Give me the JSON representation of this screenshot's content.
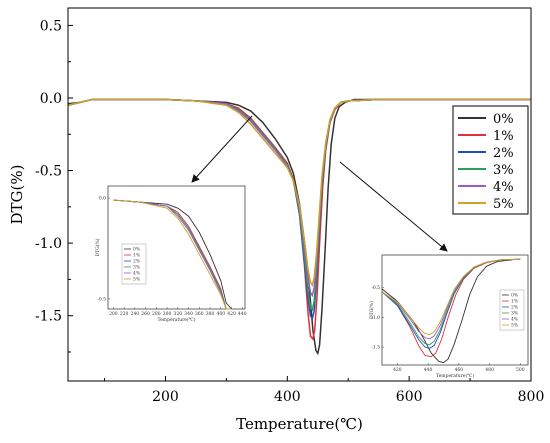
{
  "chart_data": {
    "type": "line",
    "xlabel": "Temperature(℃)",
    "ylabel": "DTG(%)",
    "xlim": [
      40,
      800
    ],
    "ylim": [
      -1.95,
      0.62
    ],
    "x_ticks": [
      "200",
      "400",
      "600",
      "800"
    ],
    "y_ticks": [
      "0.5",
      "0.0",
      "-0.5",
      "-1.0",
      "-1.5"
    ],
    "legend_position": "right",
    "series": [
      {
        "name": "0%",
        "color": "#333333",
        "x": [
          40,
          60,
          80,
          100,
          150,
          200,
          250,
          300,
          320,
          340,
          360,
          380,
          400,
          410,
          420,
          430,
          437,
          442,
          447,
          450,
          453,
          457,
          462,
          467,
          472,
          478,
          485,
          495,
          510,
          550,
          600,
          700,
          800
        ],
        "y": [
          -0.04,
          -0.03,
          -0.01,
          -0.01,
          -0.01,
          -0.01,
          -0.02,
          -0.03,
          -0.05,
          -0.09,
          -0.17,
          -0.28,
          -0.41,
          -0.52,
          -0.73,
          -1.05,
          -1.35,
          -1.6,
          -1.74,
          -1.76,
          -1.7,
          -1.45,
          -1.05,
          -0.62,
          -0.32,
          -0.14,
          -0.06,
          -0.03,
          -0.01,
          -0.01,
          -0.01,
          -0.01,
          -0.01
        ]
      },
      {
        "name": "1%",
        "color": "#e0303a",
        "x": [
          40,
          60,
          80,
          100,
          150,
          200,
          250,
          300,
          320,
          340,
          360,
          380,
          400,
          410,
          420,
          428,
          434,
          438,
          442,
          445,
          449,
          453,
          458,
          463,
          470,
          478,
          488,
          500,
          550,
          600,
          700,
          800
        ],
        "y": [
          -0.05,
          -0.03,
          -0.01,
          -0.01,
          -0.01,
          -0.01,
          -0.02,
          -0.04,
          -0.07,
          -0.14,
          -0.24,
          -0.34,
          -0.45,
          -0.56,
          -0.8,
          -1.15,
          -1.48,
          -1.64,
          -1.66,
          -1.6,
          -1.35,
          -1.0,
          -0.62,
          -0.36,
          -0.17,
          -0.08,
          -0.03,
          -0.02,
          -0.01,
          -0.01,
          -0.01,
          -0.01
        ]
      },
      {
        "name": "2%",
        "color": "#1f4fbf",
        "x": [
          40,
          60,
          80,
          100,
          150,
          200,
          250,
          300,
          320,
          340,
          360,
          380,
          400,
          410,
          420,
          428,
          434,
          438,
          441,
          444,
          448,
          452,
          457,
          463,
          470,
          478,
          488,
          500,
          550,
          600,
          700,
          800
        ],
        "y": [
          -0.05,
          -0.03,
          -0.01,
          -0.01,
          -0.01,
          -0.01,
          -0.02,
          -0.04,
          -0.08,
          -0.15,
          -0.25,
          -0.35,
          -0.46,
          -0.57,
          -0.8,
          -1.12,
          -1.38,
          -1.5,
          -1.52,
          -1.47,
          -1.25,
          -0.95,
          -0.6,
          -0.34,
          -0.16,
          -0.07,
          -0.03,
          -0.02,
          -0.01,
          -0.01,
          -0.01,
          -0.01
        ]
      },
      {
        "name": "3%",
        "color": "#2e9c5a",
        "x": [
          40,
          60,
          80,
          100,
          150,
          200,
          250,
          300,
          320,
          340,
          360,
          380,
          400,
          410,
          420,
          428,
          434,
          438,
          441,
          444,
          448,
          452,
          457,
          463,
          470,
          478,
          488,
          500,
          550,
          600,
          700,
          800
        ],
        "y": [
          -0.05,
          -0.03,
          -0.01,
          -0.01,
          -0.01,
          -0.01,
          -0.02,
          -0.04,
          -0.08,
          -0.15,
          -0.25,
          -0.35,
          -0.46,
          -0.57,
          -0.78,
          -1.08,
          -1.33,
          -1.44,
          -1.46,
          -1.4,
          -1.2,
          -0.92,
          -0.58,
          -0.33,
          -0.16,
          -0.07,
          -0.03,
          -0.02,
          -0.01,
          -0.01,
          -0.01,
          -0.01
        ]
      },
      {
        "name": "4%",
        "color": "#9b59c9",
        "x": [
          40,
          60,
          80,
          100,
          150,
          200,
          250,
          300,
          320,
          340,
          360,
          380,
          400,
          410,
          420,
          428,
          434,
          438,
          441,
          444,
          448,
          452,
          457,
          463,
          470,
          478,
          488,
          500,
          550,
          600,
          700,
          800
        ],
        "y": [
          -0.05,
          -0.03,
          -0.01,
          -0.01,
          -0.01,
          -0.01,
          -0.02,
          -0.04,
          -0.09,
          -0.16,
          -0.26,
          -0.36,
          -0.47,
          -0.57,
          -0.76,
          -1.02,
          -1.24,
          -1.34,
          -1.36,
          -1.31,
          -1.13,
          -0.87,
          -0.55,
          -0.32,
          -0.15,
          -0.07,
          -0.03,
          -0.02,
          -0.01,
          -0.01,
          -0.01,
          -0.01
        ]
      },
      {
        "name": "5%",
        "color": "#c9a227",
        "x": [
          40,
          60,
          80,
          100,
          150,
          200,
          250,
          300,
          320,
          340,
          360,
          380,
          400,
          410,
          420,
          428,
          434,
          438,
          441,
          444,
          448,
          452,
          457,
          463,
          470,
          478,
          488,
          500,
          550,
          600,
          700,
          800
        ],
        "y": [
          -0.05,
          -0.03,
          -0.01,
          -0.01,
          -0.01,
          -0.01,
          -0.02,
          -0.05,
          -0.1,
          -0.18,
          -0.28,
          -0.38,
          -0.48,
          -0.57,
          -0.74,
          -0.98,
          -1.18,
          -1.27,
          -1.29,
          -1.24,
          -1.07,
          -0.83,
          -0.53,
          -0.31,
          -0.15,
          -0.07,
          -0.03,
          -0.02,
          -0.01,
          -0.01,
          -0.01,
          -0.01
        ]
      }
    ],
    "insets": [
      {
        "name": "left-inset",
        "xlabel": "Temperature(℃)",
        "ylabel": "DTG(%)",
        "x_ticks": [
          "200",
          "220",
          "240",
          "260",
          "280",
          "300",
          "320",
          "340",
          "360",
          "380",
          "400",
          "420",
          "440"
        ],
        "y_ticks": [
          "0.0",
          "-0.5"
        ],
        "legend": [
          "0%",
          "1%",
          "2%",
          "3%",
          "4%",
          "5%"
        ]
      },
      {
        "name": "right-inset",
        "xlabel": "Temperature(℃)",
        "ylabel": "DTG(%)",
        "x_ticks": [
          "420",
          "440",
          "460",
          "480",
          "500"
        ],
        "y_ticks": [
          "-0.5",
          "-1.0",
          "-1.5"
        ],
        "legend": [
          "0%",
          "1%",
          "2%",
          "3%",
          "4%",
          "5%"
        ]
      }
    ]
  }
}
